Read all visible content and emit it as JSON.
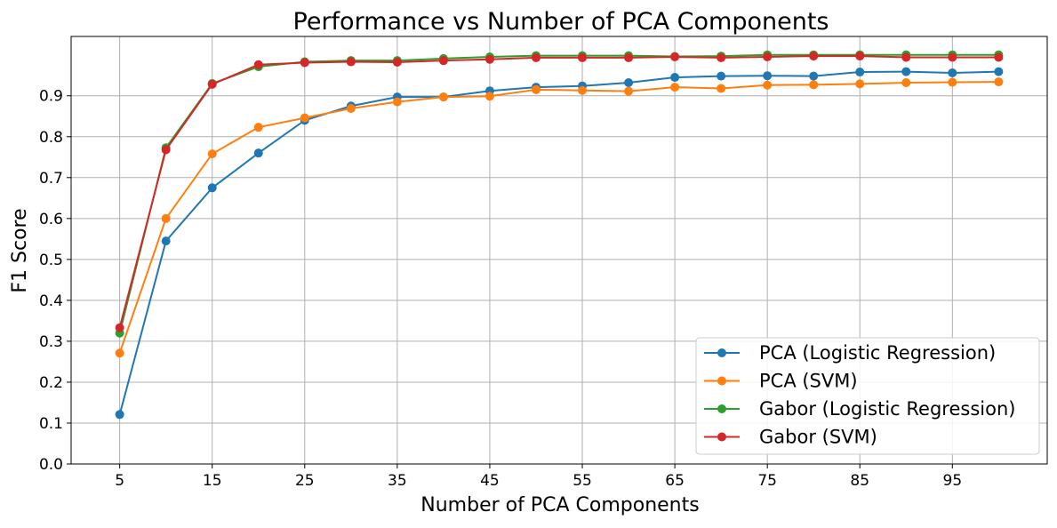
{
  "chart_data": {
    "type": "line",
    "title": "Performance vs Number of PCA Components",
    "xlabel": "Number of PCA Components",
    "ylabel": "F1 Score",
    "x": [
      5,
      10,
      15,
      20,
      25,
      30,
      35,
      40,
      45,
      50,
      55,
      60,
      65,
      70,
      75,
      80,
      85,
      90,
      95,
      100
    ],
    "xticks": [
      5,
      15,
      25,
      35,
      45,
      55,
      65,
      75,
      85,
      95
    ],
    "xtick_labels": [
      "5",
      "15",
      "25",
      "35",
      "45",
      "55",
      "65",
      "75",
      "85",
      "95"
    ],
    "yticks": [
      0.0,
      0.1,
      0.2,
      0.3,
      0.4,
      0.5,
      0.6,
      0.7,
      0.8,
      0.9
    ],
    "ytick_labels": [
      "0.0",
      "0.1",
      "0.2",
      "0.3",
      "0.4",
      "0.5",
      "0.6",
      "0.7",
      "0.8",
      "0.9"
    ],
    "xlim": [
      -0.25,
      105.25
    ],
    "ylim": [
      0.0,
      1.045
    ],
    "grid": true,
    "legend_position": "lower-right",
    "series": [
      {
        "name": "PCA (Logistic Regression)",
        "color": "#1f77b4",
        "values": [
          0.121,
          0.545,
          0.675,
          0.76,
          0.84,
          0.875,
          0.897,
          0.897,
          0.912,
          0.921,
          0.924,
          0.932,
          0.945,
          0.948,
          0.949,
          0.948,
          0.958,
          0.959,
          0.956,
          0.959
        ]
      },
      {
        "name": "PCA (SVM)",
        "color": "#ff7f0e",
        "values": [
          0.271,
          0.6,
          0.758,
          0.823,
          0.846,
          0.869,
          0.885,
          0.897,
          0.899,
          0.915,
          0.913,
          0.911,
          0.921,
          0.918,
          0.926,
          0.927,
          0.929,
          0.932,
          0.933,
          0.934
        ]
      },
      {
        "name": "Gabor (Logistic Regression)",
        "color": "#2ca02c",
        "values": [
          0.32,
          0.773,
          0.93,
          0.971,
          0.983,
          0.986,
          0.986,
          0.991,
          0.995,
          0.998,
          0.998,
          0.998,
          0.996,
          0.997,
          1.0,
          1.0,
          1.0,
          1.0,
          1.0,
          1.0
        ]
      },
      {
        "name": "Gabor (SVM)",
        "color": "#d62728",
        "values": [
          0.333,
          0.768,
          0.928,
          0.976,
          0.981,
          0.983,
          0.982,
          0.986,
          0.989,
          0.993,
          0.993,
          0.993,
          0.995,
          0.993,
          0.995,
          0.997,
          0.997,
          0.994,
          0.994,
          0.994
        ]
      }
    ]
  }
}
